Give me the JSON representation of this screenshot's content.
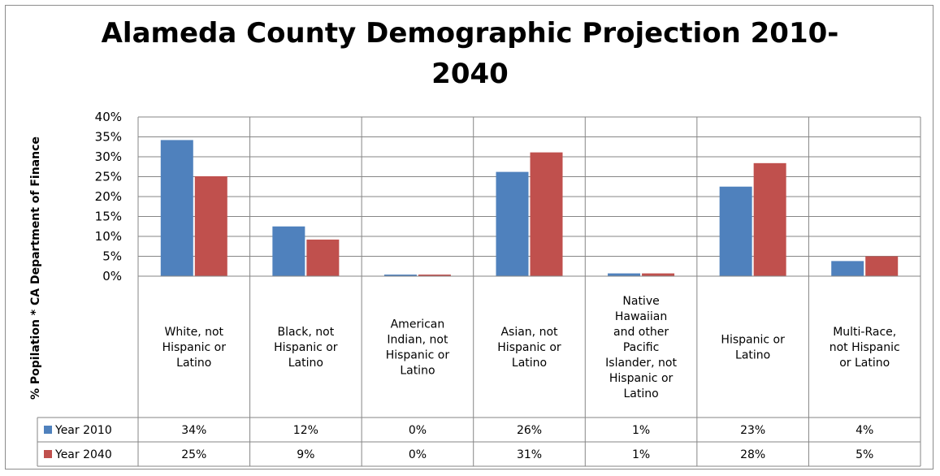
{
  "chart_data": {
    "type": "bar",
    "title_lines": [
      "Alameda County Demographic Projection 2010-",
      "2040"
    ],
    "ylabel": "% Popilation * CA Department of Finance",
    "xlabel": "",
    "ylim": [
      0,
      0.4
    ],
    "y_ticks": [
      "0%",
      "5%",
      "10%",
      "15%",
      "20%",
      "25%",
      "30%",
      "35%",
      "40%"
    ],
    "grid": true,
    "legend": "data-table",
    "categories": [
      [
        "White, not",
        "Hispanic or",
        "Latino"
      ],
      [
        "Black, not",
        "Hispanic or",
        "Latino"
      ],
      [
        "American",
        "Indian, not",
        "Hispanic or",
        "Latino"
      ],
      [
        "Asian, not",
        "Hispanic or",
        "Latino"
      ],
      [
        "Native",
        "Hawaiian",
        "and other",
        "Pacific",
        "Islander, not",
        "Hispanic or",
        "Latino"
      ],
      [
        "Hispanic or",
        "Latino"
      ],
      [
        "Multi-Race,",
        "not Hispanic",
        "or Latino"
      ]
    ],
    "series": [
      {
        "name": "Year 2010",
        "color": "#4f81bd",
        "values": [
          0.342,
          0.125,
          0.004,
          0.262,
          0.007,
          0.225,
          0.038
        ],
        "labels": [
          "34%",
          "12%",
          "0%",
          "26%",
          "1%",
          "23%",
          "4%"
        ]
      },
      {
        "name": "Year 2040",
        "color": "#c0504d",
        "values": [
          0.251,
          0.092,
          0.004,
          0.311,
          0.007,
          0.284,
          0.05
        ],
        "labels": [
          "25%",
          "9%",
          "0%",
          "31%",
          "1%",
          "28%",
          "5%"
        ]
      }
    ]
  }
}
